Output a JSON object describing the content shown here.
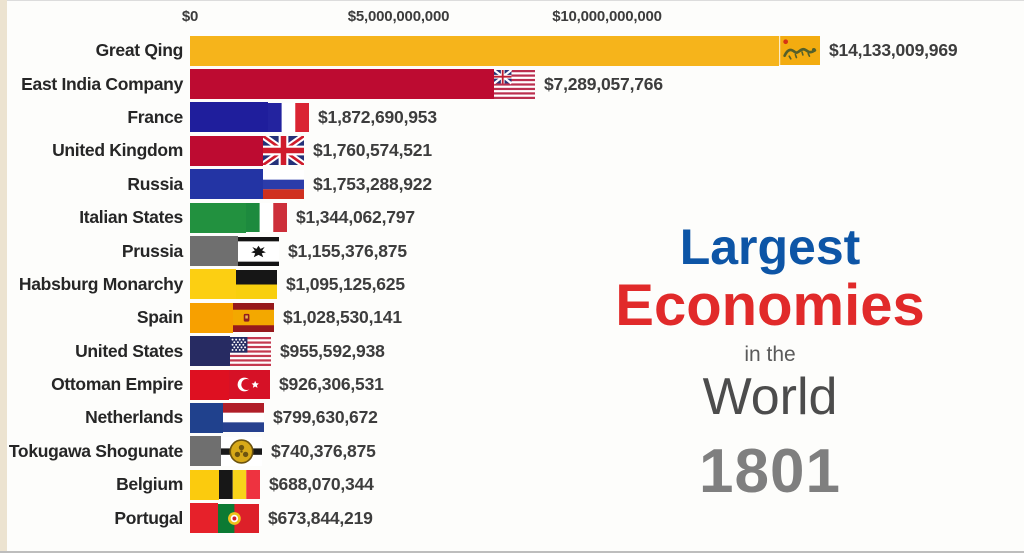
{
  "title": {
    "line1": "Largest",
    "line2": "Economies",
    "line3": "in the",
    "line4": "World",
    "line5": "1801"
  },
  "accent_colors": {
    "title_blue": "#0d55a6",
    "title_red": "#e12a2a",
    "subtitle_gray": "#4c4c4c",
    "year_gray": "#7f7f7f"
  },
  "chart_data": {
    "type": "bar",
    "orientation": "horizontal",
    "title": "Largest Economies in the World",
    "year": "1801",
    "xlabel": "",
    "ylabel": "",
    "grid": false,
    "xlim": [
      0,
      15000000000
    ],
    "axis_ticks": [
      "$0",
      "$5,000,000,000",
      "$10,000,000,000"
    ],
    "categories": [
      "Great Qing",
      "East India Company",
      "France",
      "United Kingdom",
      "Russia",
      "Italian States",
      "Prussia",
      "Habsburg Monarchy",
      "Spain",
      "United States",
      "Ottoman Empire",
      "Netherlands",
      "Tokugawa Shogunate",
      "Belgium",
      "Portugal"
    ],
    "values": [
      14133009969,
      7289057766,
      1872690953,
      1760574521,
      1753288922,
      1344062797,
      1155376875,
      1095125625,
      1028530141,
      955592938,
      926306531,
      799630672,
      740376875,
      688070344,
      673844219
    ],
    "rows": [
      {
        "label": "Great Qing",
        "value": "$14,133,009,969",
        "flag": "qing",
        "color": "#f6b41b"
      },
      {
        "label": "East India Company",
        "value": "$7,289,057,766",
        "flag": "eic",
        "color": "#bd0b31"
      },
      {
        "label": "France",
        "value": "$1,872,690,953",
        "flag": "france",
        "color": "#1f1e9c"
      },
      {
        "label": "United Kingdom",
        "value": "$1,760,574,521",
        "flag": "uk",
        "color": "#bd0b31"
      },
      {
        "label": "Russia",
        "value": "$1,753,288,922",
        "flag": "russia",
        "color": "#2334a4"
      },
      {
        "label": "Italian States",
        "value": "$1,344,062,797",
        "flag": "italy",
        "color": "#22913f"
      },
      {
        "label": "Prussia",
        "value": "$1,155,376,875",
        "flag": "prussia",
        "color": "#6f6f6f"
      },
      {
        "label": "Habsburg Monarchy",
        "value": "$1,095,125,625",
        "flag": "habsburg",
        "color": "#fccf12"
      },
      {
        "label": "Spain",
        "value": "$1,028,530,141",
        "flag": "spain",
        "color": "#f7a000"
      },
      {
        "label": "United States",
        "value": "$955,592,938",
        "flag": "us",
        "color": "#272b62"
      },
      {
        "label": "Ottoman Empire",
        "value": "$926,306,531",
        "flag": "ottoman",
        "color": "#de1021"
      },
      {
        "label": "Netherlands",
        "value": "$799,630,672",
        "flag": "netherlands",
        "color": "#20418d"
      },
      {
        "label": "Tokugawa Shogunate",
        "value": "$740,376,875",
        "flag": "tokugawa",
        "color": "#6f6f6f"
      },
      {
        "label": "Belgium",
        "value": "$688,070,344",
        "flag": "belgium",
        "color": "#fbcb0e"
      },
      {
        "label": "Portugal",
        "value": "$673,844,219",
        "flag": "portugal",
        "color": "#e6212a"
      }
    ]
  }
}
